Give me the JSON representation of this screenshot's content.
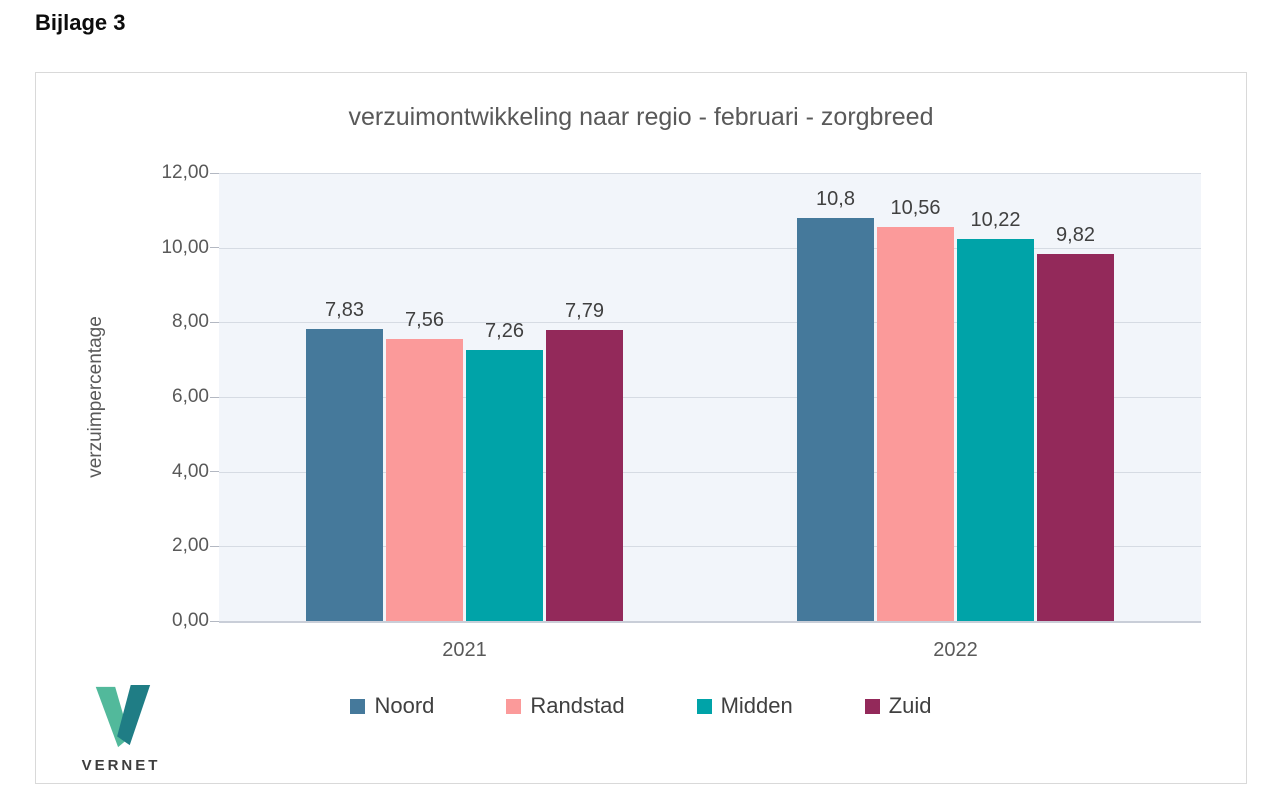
{
  "page": {
    "heading": "Bijlage 3"
  },
  "logo": {
    "text": "VERNET",
    "light_color": "#52b99b",
    "dark_color": "#1f7d85"
  },
  "chart_data": {
    "type": "bar",
    "title": "verzuimontwikkeling naar regio - februari - zorgbreed",
    "xlabel": "",
    "ylabel": "verzuimpercentage",
    "categories": [
      "2021",
      "2022"
    ],
    "series": [
      {
        "name": "Noord",
        "color": "#45799b",
        "values": [
          7.83,
          10.8
        ],
        "labels": [
          "7,83",
          "10,8"
        ]
      },
      {
        "name": "Randstad",
        "color": "#fb9a9a",
        "values": [
          7.56,
          10.56
        ],
        "labels": [
          "7,56",
          "10,56"
        ]
      },
      {
        "name": "Midden",
        "color": "#00a3a8",
        "values": [
          7.26,
          10.22
        ],
        "labels": [
          "7,26",
          "10,22"
        ]
      },
      {
        "name": "Zuid",
        "color": "#93295a",
        "values": [
          7.79,
          9.82
        ],
        "labels": [
          "7,79",
          "9,82"
        ]
      }
    ],
    "ylim": [
      0,
      12
    ],
    "ytick_step": 2,
    "ytick_labels": [
      "0,00",
      "2,00",
      "4,00",
      "6,00",
      "8,00",
      "10,00",
      "12,00"
    ],
    "grid": true,
    "legend_position": "bottom",
    "colors": {
      "plot_bg": "#f2f5fa",
      "gridline": "#d6dbe3",
      "axis_line": "#c9ced8",
      "tick": "#b3b8c2",
      "axis_text": "#595959",
      "label_text": "#404040"
    }
  }
}
